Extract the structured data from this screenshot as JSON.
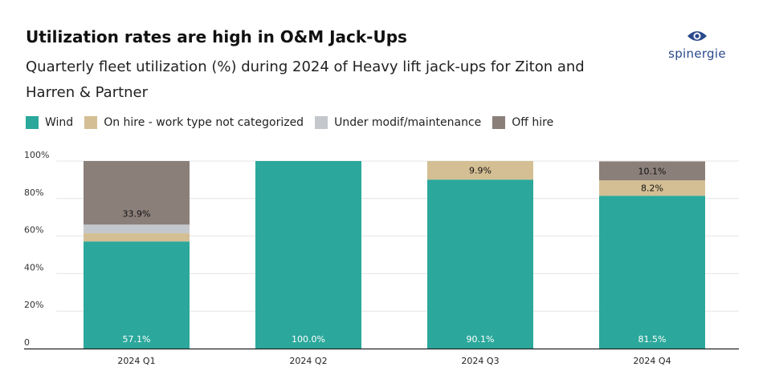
{
  "header": {
    "title": "Utilization rates are high in O&M Jack-Ups",
    "subtitle": "Quarterly fleet utilization (%) during 2024 of Heavy lift jack-ups for Ziton and Harren & Partner",
    "logo_text": "spinergie"
  },
  "colors": {
    "wind": "#2ba89b",
    "on_hire": "#d4bf94",
    "modif": "#c4c8cc",
    "off_hire": "#8b7f7a",
    "logo": "#2a4a8c"
  },
  "chart_data": {
    "type": "bar",
    "stacked": true,
    "categories": [
      "2024 Q1",
      "2024 Q2",
      "2024 Q3",
      "2024 Q4"
    ],
    "series": [
      {
        "name": "Wind",
        "key": "wind",
        "values": [
          57.1,
          100.0,
          90.1,
          81.5
        ],
        "labels": [
          "57.1%",
          "100.0%",
          "90.1%",
          "81.5%"
        ]
      },
      {
        "name": "On hire - work type not categorized",
        "key": "on_hire",
        "values": [
          4.4,
          0,
          9.9,
          8.2
        ],
        "labels": [
          "",
          "",
          "9.9%",
          "8.2%"
        ]
      },
      {
        "name": "Under modif/maintenance",
        "key": "modif",
        "values": [
          4.6,
          0,
          0,
          0
        ],
        "labels": [
          "",
          "",
          "",
          ""
        ]
      },
      {
        "name": "Off hire",
        "key": "off_hire",
        "values": [
          33.9,
          0,
          0,
          10.1
        ],
        "labels": [
          "33.9%",
          "",
          "",
          "10.1%"
        ]
      }
    ],
    "y_ticks": [
      {
        "value": 0,
        "label": "0"
      },
      {
        "value": 20,
        "label": "20%"
      },
      {
        "value": 40,
        "label": "40%"
      },
      {
        "value": 60,
        "label": "60%"
      },
      {
        "value": 80,
        "label": "80%"
      },
      {
        "value": 100,
        "label": "100%"
      }
    ],
    "ylim": [
      0,
      100
    ],
    "grid": true,
    "legend_position": "top-left"
  }
}
